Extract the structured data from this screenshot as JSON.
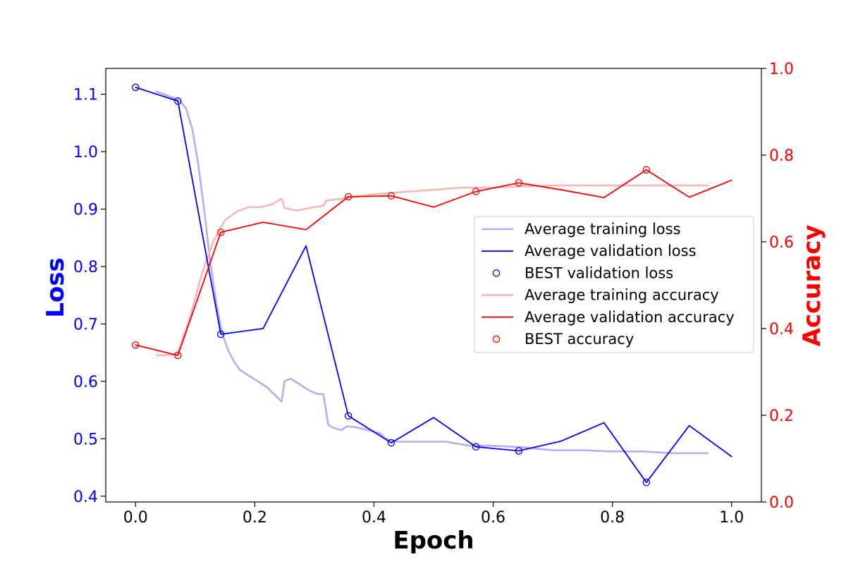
{
  "chart_data": {
    "type": "line",
    "title": "",
    "xlabel": "Epoch",
    "ylabel_left": "Loss",
    "ylabel_right": "Accuracy",
    "xlim": [
      -0.05,
      1.05
    ],
    "ylim_left": [
      0.39,
      1.145
    ],
    "ylim_right": [
      0.0,
      1.0
    ],
    "x_ticks": [
      "0.0",
      "0.2",
      "0.4",
      "0.6",
      "0.8",
      "1.0"
    ],
    "y_left_ticks": [
      "0.4",
      "0.5",
      "0.6",
      "0.7",
      "0.8",
      "0.9",
      "1.0",
      "1.1"
    ],
    "y_right_ticks": [
      "0.0",
      "0.2",
      "0.4",
      "0.6",
      "0.8",
      "1.0"
    ],
    "grid": false,
    "legend_position": "center-right",
    "colors": {
      "loss_axis": "#0000ff",
      "accuracy_axis": "#ff0000",
      "training_loss": "#b0b0f5",
      "validation_loss": "#0000ff",
      "training_accuracy": "#f8b7b7",
      "validation_accuracy": "#ff0000"
    },
    "series": [
      {
        "name": "Average training loss",
        "axis": "left",
        "style": "line",
        "x": [
          0.035,
          0.06,
          0.075,
          0.085,
          0.095,
          0.105,
          0.115,
          0.125,
          0.135,
          0.145,
          0.155,
          0.165,
          0.175,
          0.19,
          0.205,
          0.22,
          0.235,
          0.245,
          0.25,
          0.26,
          0.275,
          0.29,
          0.305,
          0.315,
          0.318,
          0.323,
          0.33,
          0.345,
          0.355,
          0.37,
          0.39,
          0.41,
          0.42,
          0.44,
          0.48,
          0.52,
          0.56,
          0.6,
          0.65,
          0.7,
          0.75,
          0.8,
          0.85,
          0.9,
          0.96
        ],
        "y": [
          1.105,
          1.095,
          1.088,
          1.075,
          1.04,
          0.98,
          0.9,
          0.81,
          0.74,
          0.685,
          0.655,
          0.635,
          0.62,
          0.61,
          0.6,
          0.59,
          0.575,
          0.565,
          0.6,
          0.605,
          0.595,
          0.585,
          0.578,
          0.578,
          0.56,
          0.525,
          0.52,
          0.515,
          0.522,
          0.52,
          0.515,
          0.51,
          0.5,
          0.495,
          0.495,
          0.495,
          0.488,
          0.488,
          0.485,
          0.48,
          0.48,
          0.478,
          0.478,
          0.475,
          0.475
        ]
      },
      {
        "name": "Average validation loss",
        "axis": "left",
        "style": "line",
        "x": [
          0.0,
          0.071,
          0.143,
          0.214,
          0.286,
          0.357,
          0.429,
          0.5,
          0.571,
          0.643,
          0.714,
          0.786,
          0.857,
          0.929,
          1.0
        ],
        "y": [
          1.112,
          1.088,
          0.682,
          0.692,
          0.836,
          0.54,
          0.493,
          0.537,
          0.486,
          0.479,
          0.496,
          0.528,
          0.424,
          0.523,
          0.469
        ]
      },
      {
        "name": "BEST validation loss",
        "axis": "left",
        "style": "markers",
        "x": [
          0.0,
          0.071,
          0.143,
          0.357,
          0.429,
          0.571,
          0.643,
          0.857
        ],
        "y": [
          1.112,
          1.088,
          0.682,
          0.54,
          0.493,
          0.486,
          0.479,
          0.424
        ]
      },
      {
        "name": "Average training accuracy",
        "axis": "right",
        "style": "line",
        "x": [
          0.035,
          0.07,
          0.09,
          0.11,
          0.13,
          0.15,
          0.17,
          0.19,
          0.21,
          0.23,
          0.245,
          0.25,
          0.27,
          0.3,
          0.315,
          0.32,
          0.35,
          0.4,
          0.45,
          0.5,
          0.55,
          0.6,
          0.65,
          0.7,
          0.75,
          0.8,
          0.85,
          0.9,
          0.96
        ],
        "y": [
          0.338,
          0.34,
          0.42,
          0.52,
          0.6,
          0.65,
          0.67,
          0.68,
          0.68,
          0.687,
          0.7,
          0.678,
          0.672,
          0.68,
          0.683,
          0.695,
          0.7,
          0.71,
          0.715,
          0.72,
          0.725,
          0.725,
          0.728,
          0.73,
          0.73,
          0.73,
          0.73,
          0.73,
          0.73
        ]
      },
      {
        "name": "Average validation accuracy",
        "axis": "right",
        "style": "line",
        "x": [
          0.0,
          0.071,
          0.143,
          0.214,
          0.286,
          0.357,
          0.429,
          0.5,
          0.571,
          0.643,
          0.714,
          0.786,
          0.857,
          0.929,
          1.0
        ],
        "y": [
          0.362,
          0.338,
          0.622,
          0.645,
          0.628,
          0.704,
          0.706,
          0.68,
          0.716,
          0.736,
          0.72,
          0.702,
          0.766,
          0.703,
          0.742
        ]
      },
      {
        "name": "BEST accuracy",
        "axis": "right",
        "style": "markers",
        "x": [
          0.0,
          0.071,
          0.143,
          0.357,
          0.429,
          0.571,
          0.643,
          0.857
        ],
        "y": [
          0.362,
          0.338,
          0.622,
          0.704,
          0.706,
          0.716,
          0.736,
          0.766
        ]
      }
    ]
  }
}
